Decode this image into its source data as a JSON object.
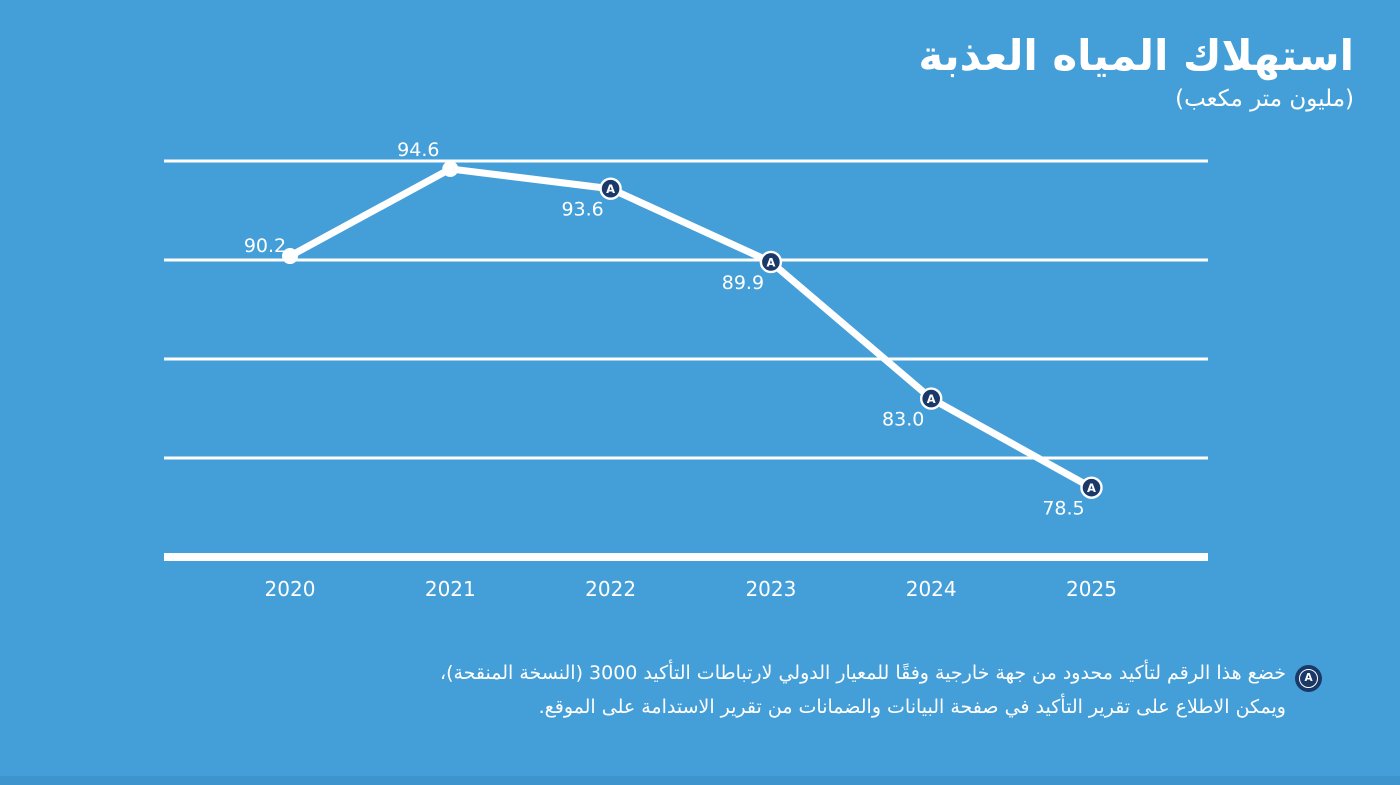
{
  "page": {
    "background_color": "#449FD9",
    "footer_strip_color": "#3E94CC",
    "text_color": "#FFFFFF"
  },
  "header": {
    "title": "استهلاك المياه العذبة",
    "subtitle": "(مليون متر مكعب)"
  },
  "chart_data": {
    "type": "line",
    "title": "استهلاك المياه العذبة",
    "unit_label": "(مليون متر مكعب)",
    "categories": [
      "2020",
      "2021",
      "2022",
      "2023",
      "2024",
      "2025"
    ],
    "values": [
      90.2,
      94.6,
      93.6,
      89.9,
      83.0,
      78.5
    ],
    "value_labels": [
      "90.2",
      "94.6",
      "93.6",
      "89.9",
      "83.0",
      "78.5"
    ],
    "assured": [
      false,
      false,
      true,
      true,
      true,
      true
    ],
    "label_positions": [
      "left-above",
      "above",
      "below-left",
      "below-left",
      "below-left",
      "below-left"
    ],
    "ylim": [
      75,
      95
    ],
    "gridline_values": [
      80,
      85,
      90,
      95
    ],
    "grid": "horizontal",
    "legend_position": "none",
    "line_color": "#FFFFFF",
    "grid_color": "#FFFFFF",
    "badge_color": "#1B3968",
    "badge_letter": "A",
    "xlabel": "",
    "ylabel": ""
  },
  "footnote": {
    "badge_letter": "A",
    "line1": "خضع هذا الرقم لتأكيد محدود من جهة خارجية وفقًا للمعيار الدولي لارتباطات التأكيد 3000 (النسخة المنقحة)،",
    "line2": "ويمكن الاطلاع على تقرير التأكيد في صفحة البيانات والضمانات من تقرير الاستدامة على الموقع."
  }
}
